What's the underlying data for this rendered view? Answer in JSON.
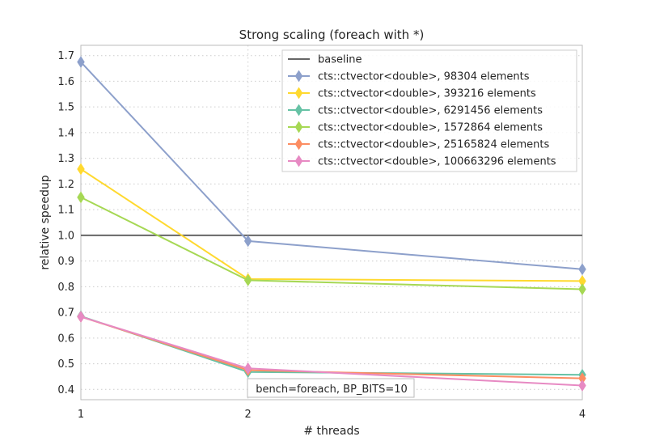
{
  "chart_data": {
    "type": "line",
    "title": "Strong scaling (foreach with *)",
    "xlabel": "# threads",
    "ylabel": "relative speedup",
    "x": [
      1,
      2,
      4
    ],
    "xlim": [
      1,
      4
    ],
    "ylim": [
      0.36,
      1.74
    ],
    "x_ticks": [
      "1",
      "2",
      "4"
    ],
    "y_ticks": [
      "0.4",
      "0.5",
      "0.6",
      "0.7",
      "0.8",
      "0.9",
      "1.0",
      "1.1",
      "1.2",
      "1.3",
      "1.4",
      "1.5",
      "1.6",
      "1.7"
    ],
    "grid": true,
    "legend_position": "top-right",
    "annotation": "bench=foreach, BP_BITS=10",
    "baseline": {
      "name": "baseline",
      "value": 1.0,
      "color": "#666666"
    },
    "series": [
      {
        "name": "cts::ctvector<double>, 98304 elements",
        "color": "#8da0cb",
        "values": [
          1.675,
          0.978,
          0.868
        ]
      },
      {
        "name": "cts::ctvector<double>, 393216 elements",
        "color": "#ffd92f",
        "values": [
          1.258,
          0.83,
          0.822
        ]
      },
      {
        "name": "cts::ctvector<double>, 6291456 elements",
        "color": "#66c2a5",
        "values": [
          0.685,
          0.468,
          0.457
        ]
      },
      {
        "name": "cts::ctvector<double>, 1572864 elements",
        "color": "#a6d854",
        "values": [
          1.148,
          0.825,
          0.79
        ]
      },
      {
        "name": "cts::ctvector<double>, 25165824 elements",
        "color": "#fc8d62",
        "values": [
          0.683,
          0.475,
          0.443
        ]
      },
      {
        "name": "cts::ctvector<double>, 100663296 elements",
        "color": "#e78ac3",
        "values": [
          0.683,
          0.482,
          0.415
        ]
      }
    ]
  }
}
